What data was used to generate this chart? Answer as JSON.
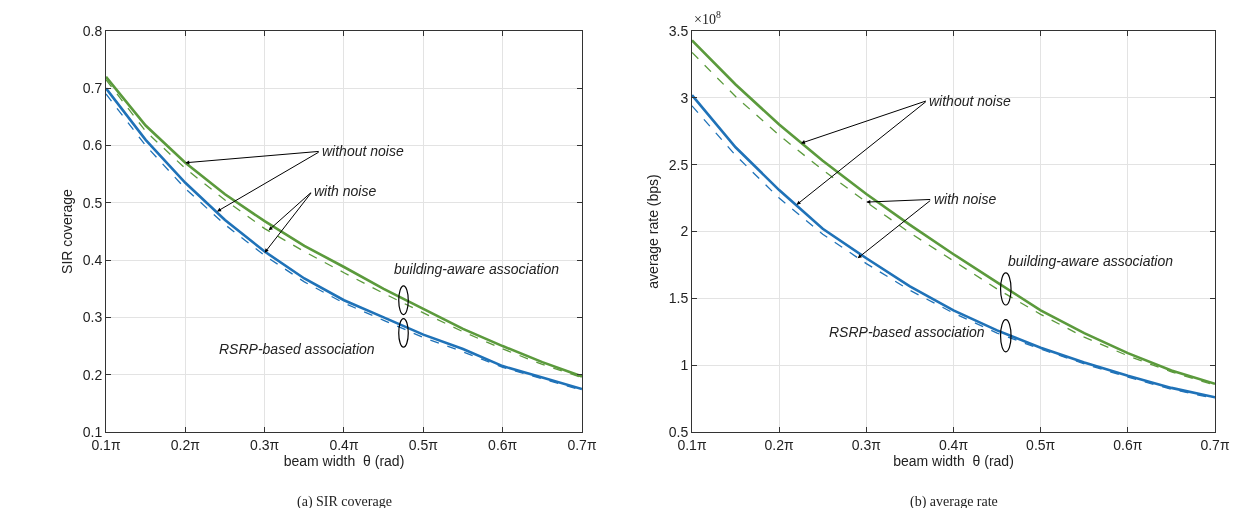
{
  "chart_data": [
    {
      "type": "line",
      "xlabel": "beam width  θ (rad)",
      "ylabel": "SIR coverage",
      "x": [
        0.3142,
        0.4712,
        0.6283,
        0.7854,
        0.9425,
        1.0996,
        1.2566,
        1.4137,
        1.5708,
        1.7279,
        1.885,
        2.042,
        2.1991
      ],
      "series": [
        {
          "color": "#5b9a3c",
          "line_style": "solid",
          "values": [
            0.72,
            0.635,
            0.57,
            0.515,
            0.468,
            0.425,
            0.388,
            0.35,
            0.315,
            0.28,
            0.25,
            0.222,
            0.197
          ]
        },
        {
          "color": "#5b9a3c",
          "line_style": "dashed",
          "values": [
            0.715,
            0.625,
            0.56,
            0.505,
            0.455,
            0.415,
            0.378,
            0.342,
            0.308,
            0.275,
            0.245,
            0.218,
            0.195
          ]
        },
        {
          "color": "#1f72b8",
          "line_style": "solid",
          "values": [
            0.7,
            0.61,
            0.535,
            0.47,
            0.415,
            0.368,
            0.33,
            0.3,
            0.27,
            0.245,
            0.215,
            0.195,
            0.175
          ]
        },
        {
          "color": "#1f72b8",
          "line_style": "dashed",
          "values": [
            0.69,
            0.6,
            0.525,
            0.462,
            0.408,
            0.362,
            0.325,
            0.295,
            0.265,
            0.24,
            0.213,
            0.193,
            0.173
          ]
        }
      ],
      "xlim": [
        0.3142,
        2.1991
      ],
      "xticks": [
        {
          "value": 0.3142,
          "label": "0.1π"
        },
        {
          "value": 0.6283,
          "label": "0.2π"
        },
        {
          "value": 0.9425,
          "label": "0.3π"
        },
        {
          "value": 1.2566,
          "label": "0.4π"
        },
        {
          "value": 1.5708,
          "label": "0.5π"
        },
        {
          "value": 1.885,
          "label": "0.6π"
        },
        {
          "value": 2.1991,
          "label": "0.7π"
        }
      ],
      "ylim": [
        0.1,
        0.8
      ],
      "yticks": [
        0.1,
        0.2,
        0.3,
        0.4,
        0.5,
        0.6,
        0.7,
        0.8
      ],
      "grid": true,
      "marker": "none",
      "annotations": [
        {
          "text": "without noise",
          "x": 0.6283,
          "y": 0.57
        },
        {
          "text": "with noise",
          "x": 0.9582,
          "y": 0.452
        },
        "building-aware association",
        "RSRP-based association",
        "(a) SIR coverage"
      ]
    },
    {
      "type": "line",
      "xlabel": "beam width  θ (rad)",
      "ylabel": "average rate (bps)",
      "x": [
        0.3142,
        0.4712,
        0.6283,
        0.7854,
        0.9425,
        1.0996,
        1.2566,
        1.4137,
        1.5708,
        1.7279,
        1.885,
        2.042,
        2.1991
      ],
      "series": [
        {
          "color": "#5b9a3c",
          "line_style": "solid",
          "values": [
            3.43,
            3.1,
            2.8,
            2.53,
            2.28,
            2.05,
            1.83,
            1.62,
            1.41,
            1.24,
            1.09,
            0.96,
            0.86
          ]
        },
        {
          "color": "#5b9a3c",
          "line_style": "dashed",
          "values": [
            3.34,
            3.01,
            2.72,
            2.46,
            2.22,
            1.99,
            1.78,
            1.57,
            1.38,
            1.21,
            1.07,
            0.95,
            0.85
          ]
        },
        {
          "color": "#1f72b8",
          "line_style": "solid",
          "values": [
            3.02,
            2.63,
            2.31,
            2.02,
            1.8,
            1.59,
            1.41,
            1.26,
            1.13,
            1.02,
            0.92,
            0.83,
            0.76
          ]
        },
        {
          "color": "#1f72b8",
          "line_style": "dashed",
          "values": [
            2.94,
            2.57,
            2.25,
            1.98,
            1.76,
            1.56,
            1.39,
            1.24,
            1.12,
            1.01,
            0.91,
            0.82,
            0.75
          ]
        }
      ],
      "xlim": [
        0.3142,
        2.1991
      ],
      "xticks": [
        {
          "value": 0.3142,
          "label": "0.1π"
        },
        {
          "value": 0.6283,
          "label": "0.2π"
        },
        {
          "value": 0.9425,
          "label": "0.3π"
        },
        {
          "value": 1.2566,
          "label": "0.4π"
        },
        {
          "value": 1.5708,
          "label": "0.5π"
        },
        {
          "value": 1.885,
          "label": "0.6π"
        },
        {
          "value": 2.1991,
          "label": "0.7π"
        }
      ],
      "ylim": [
        0.5,
        3.5
      ],
      "yticks": [
        0.5,
        1,
        1.5,
        2,
        2.5,
        3,
        3.5
      ],
      "grid": true,
      "marker": "none",
      "annotations": [
        {
          "text": "without noise",
          "x": 0.7069,
          "y": 2.66
        },
        {
          "text": "with noise",
          "x": 0.9425,
          "y": 2.22
        },
        "building-aware association",
        "RSRP-based association",
        "(b) average rate",
        "×10$^{8}$"
      ]
    }
  ]
}
